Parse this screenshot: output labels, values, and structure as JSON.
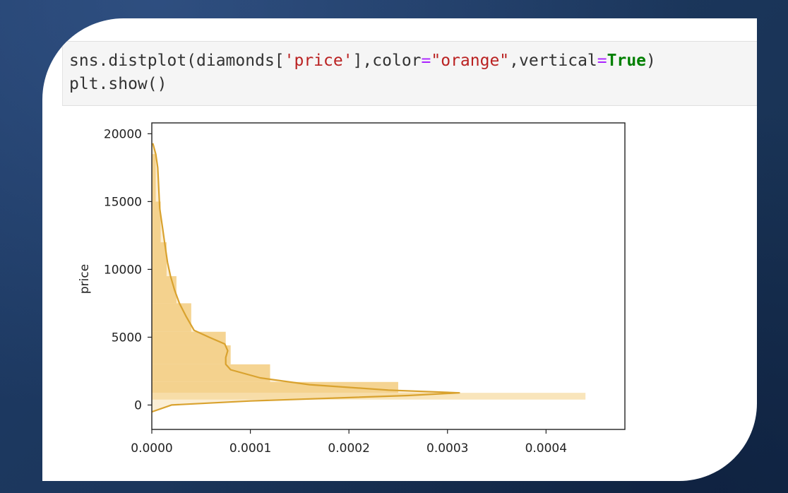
{
  "code": {
    "line1": {
      "t1": "sns.distplot(diamonds[",
      "t2": "'price'",
      "t3": "],color",
      "t4": "=",
      "t5": "\"orange\"",
      "t6": ",vertical",
      "t7": "=",
      "t8": "True",
      "t9": ")"
    },
    "line2": "plt.show()"
  },
  "colors": {
    "background": "#1b365f",
    "histogram_fill": "#f4cf86",
    "histogram_fill_light": "#f8e2b4",
    "kde_line": "#d9a22e",
    "string_token": "#ba2121",
    "operator_token": "#aa22ff",
    "keyword_token": "#008000"
  },
  "chart_data": {
    "type": "area",
    "orientation": "vertical",
    "ylabel": "price",
    "xlabel": "",
    "xlim": [
      0,
      0.00048
    ],
    "ylim": [
      -1800,
      20800
    ],
    "x_ticks": [
      "0.0000",
      "0.0001",
      "0.0002",
      "0.0003",
      "0.0004"
    ],
    "x_tick_values": [
      0,
      0.0001,
      0.0002,
      0.0003,
      0.0004
    ],
    "y_ticks": [
      "0",
      "5000",
      "10000",
      "15000",
      "20000"
    ],
    "y_tick_values": [
      0,
      5000,
      10000,
      15000,
      20000
    ],
    "histogram": {
      "bin_edges": [
        400,
        900,
        1700,
        3000,
        4400,
        5400,
        7500,
        9500,
        12000,
        15000,
        18500
      ],
      "densities": [
        0.00044,
        0.00025,
        0.00012,
        8e-05,
        7.5e-05,
        4e-05,
        2.5e-05,
        1.5e-05,
        9e-06,
        4e-06
      ]
    },
    "kde": {
      "price": [
        -500,
        0,
        300,
        700,
        900,
        1100,
        1500,
        2000,
        2600,
        3000,
        3500,
        4000,
        4500,
        5000,
        5500,
        6500,
        7500,
        8500,
        9500,
        10500,
        12000,
        13000,
        14500,
        16000,
        17500,
        18500,
        19300
      ],
      "density": [
        3e-07,
        2e-05,
        0.0001,
        0.00026,
        0.000312,
        0.00024,
        0.00016,
        0.00011,
        8e-05,
        7.5e-05,
        7.5e-05,
        7.7e-05,
        7.4e-05,
        5.8e-05,
        4.3e-05,
        3.5e-05,
        2.8e-05,
        2.3e-05,
        1.9e-05,
        1.6e-05,
        1.3e-05,
        1.1e-05,
        8e-06,
        7e-06,
        6e-06,
        4e-06,
        1e-06
      ]
    }
  }
}
